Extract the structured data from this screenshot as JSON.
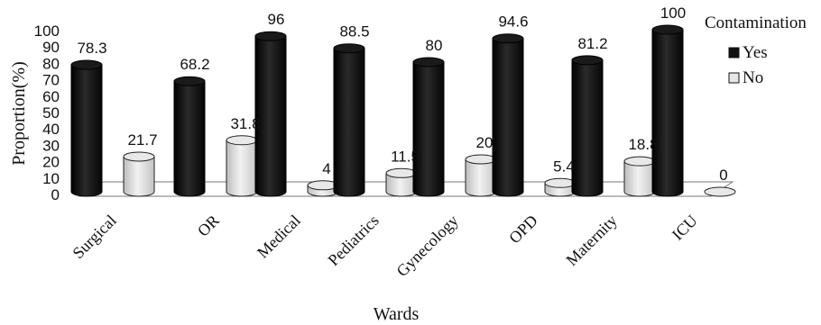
{
  "chart_data": {
    "type": "bar",
    "style": "3d-cylinder",
    "xlabel": "Wards",
    "ylabel": "Proportion(%)",
    "ylim": [
      0,
      100
    ],
    "yticks": [
      0,
      10,
      20,
      30,
      40,
      50,
      60,
      70,
      80,
      90,
      100
    ],
    "categories": [
      "Surgical",
      "OR",
      "Medical",
      "Pediatrics",
      "Gynecology",
      "OPD",
      "Maternity",
      "ICU"
    ],
    "legend": {
      "title": "Contamination",
      "position": "top-right"
    },
    "series": [
      {
        "name": "Yes",
        "color": "#111111",
        "values": [
          78.3,
          68.2,
          96,
          88.5,
          80,
          94.6,
          81.2,
          100
        ]
      },
      {
        "name": "No",
        "color": "#d9d9d9",
        "values": [
          21.7,
          31.8,
          4,
          11.5,
          20,
          5.4,
          18.8,
          0
        ]
      }
    ],
    "grid": false
  }
}
